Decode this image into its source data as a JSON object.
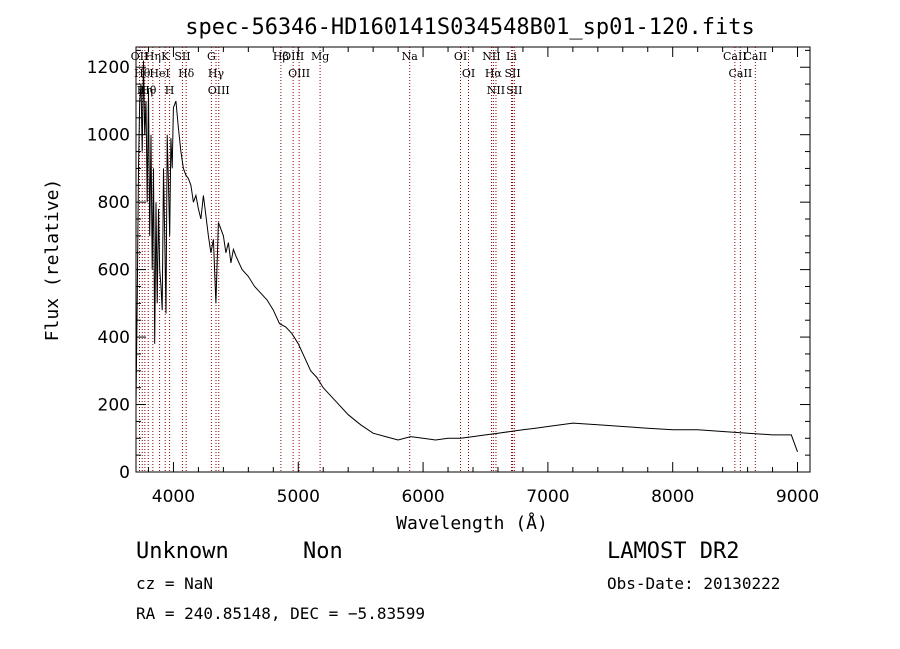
{
  "chart_data": {
    "type": "line",
    "title": "spec-56346-HD160141S034548B01_sp01-120.fits",
    "xlabel": "Wavelength (Å)",
    "ylabel": "Flux (relative)",
    "xlim": [
      3700,
      9100
    ],
    "ylim": [
      0,
      1260
    ],
    "xticks": [
      4000,
      5000,
      6000,
      7000,
      8000,
      9000
    ],
    "yticks": [
      0,
      200,
      400,
      600,
      800,
      1000,
      1200
    ],
    "series": [
      {
        "x": [
          3700,
          3710,
          3720,
          3730,
          3740,
          3750,
          3760,
          3770,
          3780,
          3790,
          3800,
          3810,
          3820,
          3830,
          3840,
          3850,
          3860,
          3870,
          3880,
          3890,
          3900,
          3910,
          3920,
          3930,
          3940,
          3950,
          3960,
          3970,
          3980,
          3990,
          4000,
          4020,
          4040,
          4060,
          4080,
          4100,
          4120,
          4140,
          4160,
          4180,
          4200,
          4220,
          4240,
          4260,
          4280,
          4300,
          4320,
          4340,
          4360,
          4380,
          4400,
          4420,
          4440,
          4460,
          4480,
          4500,
          4550,
          4600,
          4650,
          4700,
          4750,
          4800,
          4850,
          4900,
          4950,
          5000,
          5050,
          5100,
          5150,
          5200,
          5300,
          5400,
          5500,
          5600,
          5700,
          5800,
          5900,
          6000,
          6100,
          6200,
          6300,
          6400,
          6500,
          6600,
          6700,
          6800,
          6900,
          7000,
          7200,
          7400,
          7600,
          7800,
          8000,
          8200,
          8400,
          8600,
          8800,
          8950,
          9000
        ],
        "values": [
          200,
          500,
          900,
          1100,
          1150,
          950,
          1220,
          1000,
          1100,
          800,
          1130,
          700,
          1000,
          600,
          900,
          380,
          800,
          500,
          780,
          600,
          550,
          480,
          900,
          700,
          470,
          1000,
          850,
          700,
          990,
          900,
          1080,
          1100,
          1020,
          950,
          900,
          880,
          870,
          850,
          800,
          820,
          780,
          750,
          820,
          760,
          700,
          650,
          690,
          500,
          740,
          720,
          700,
          650,
          680,
          620,
          660,
          640,
          600,
          580,
          550,
          530,
          510,
          480,
          440,
          430,
          410,
          380,
          340,
          300,
          280,
          250,
          210,
          170,
          140,
          115,
          105,
          95,
          105,
          100,
          95,
          100,
          100,
          105,
          110,
          115,
          120,
          125,
          130,
          135,
          145,
          140,
          135,
          130,
          125,
          125,
          120,
          115,
          110,
          110,
          60
        ]
      }
    ],
    "lines": [
      {
        "x": 3728,
        "label": "OII"
      },
      {
        "x": 3750,
        "label": "Hθ"
      },
      {
        "x": 3771,
        "label": "Hη"
      },
      {
        "x": 3798,
        "label": "Hθ"
      },
      {
        "x": 3835,
        "label": "Hη"
      },
      {
        "x": 3889,
        "label": "HeI"
      },
      {
        "x": 3934,
        "label": "K"
      },
      {
        "x": 3969,
        "label": "H"
      },
      {
        "x": 4072,
        "label": "SII"
      },
      {
        "x": 4102,
        "label": "Hδ"
      },
      {
        "x": 4304,
        "label": "G"
      },
      {
        "x": 4341,
        "label": "Hγ"
      },
      {
        "x": 4363,
        "label": "OIII"
      },
      {
        "x": 4861,
        "label": "Hβ"
      },
      {
        "x": 4959,
        "label": "OIII"
      },
      {
        "x": 5007,
        "label": "OIII"
      },
      {
        "x": 5175,
        "label": "Mg"
      },
      {
        "x": 5893,
        "label": "Na"
      },
      {
        "x": 6300,
        "label": "OI"
      },
      {
        "x": 6364,
        "label": "OI"
      },
      {
        "x": 6548,
        "label": "NII"
      },
      {
        "x": 6563,
        "label": "Hα"
      },
      {
        "x": 6584,
        "label": "NII"
      },
      {
        "x": 6708,
        "label": "Li"
      },
      {
        "x": 6717,
        "label": "SII"
      },
      {
        "x": 6731,
        "label": "SII"
      },
      {
        "x": 8498,
        "label": "CaII"
      },
      {
        "x": 8542,
        "label": "CaII"
      },
      {
        "x": 8662,
        "label": "CaII"
      }
    ]
  },
  "info": {
    "object_class": "Unknown",
    "object_subclass": "Non",
    "cz": "cz = NaN",
    "coords": "RA = 240.85148, DEC =  −5.83599",
    "survey": "LAMOST DR2",
    "obs_date": "Obs-Date: 20130222"
  },
  "colors": {
    "spectrum": "#000000",
    "line_marker": "#8b0000"
  }
}
